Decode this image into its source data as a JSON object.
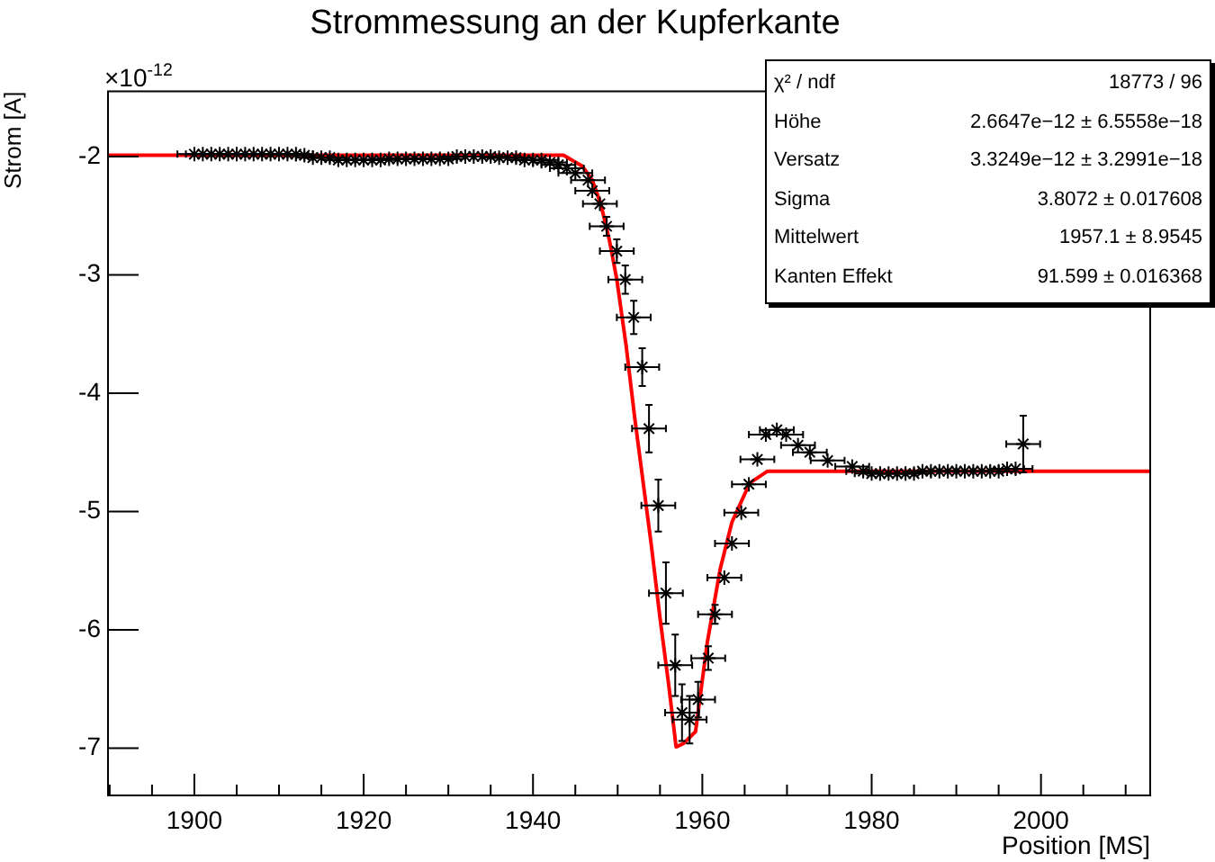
{
  "chart_data": {
    "type": "scatter",
    "title": "Strommessung an der Kupferkante",
    "xlabel": "Position [MS]",
    "ylabel": "Strom [A]",
    "annotations": [
      "×10$^{-12}$",
      "χ² / ndf",
      "18773 / 96",
      "Höhe",
      "2.6647e−12 ± 6.5558e−18",
      "Versatz",
      "3.3249e−12 ± 3.2991e−18",
      "Sigma",
      "3.8072 ± 0.017608",
      "Mittelwert",
      "1957.1 ± 8.9545",
      "Kanten Effekt",
      "91.599 ± 0.016368"
    ],
    "xlim": [
      1889.8,
      2012.9
    ],
    "xticks": [
      {
        "value": 1890,
        "label": null
      },
      {
        "value": 1895,
        "label": null
      },
      1900,
      {
        "value": 1905,
        "label": null
      },
      {
        "value": 1910,
        "label": null
      },
      {
        "value": 1915,
        "label": null
      },
      1920,
      {
        "value": 1925,
        "label": null
      },
      {
        "value": 1930,
        "label": null
      },
      {
        "value": 1935,
        "label": null
      },
      1940,
      {
        "value": 1945,
        "label": null
      },
      {
        "value": 1950,
        "label": null
      },
      {
        "value": 1955,
        "label": null
      },
      1960,
      {
        "value": 1965,
        "label": null
      },
      {
        "value": 1970,
        "label": null
      },
      {
        "value": 1975,
        "label": null
      },
      1980,
      {
        "value": 1985,
        "label": null
      },
      {
        "value": 1990,
        "label": null
      },
      {
        "value": 1995,
        "label": null
      },
      2000,
      {
        "value": 2005,
        "label": null
      },
      {
        "value": 2010,
        "label": null
      }
    ],
    "ylim": [
      -7.4,
      -1.45
    ],
    "yticks": [
      -7,
      -6,
      -5,
      -4,
      -3,
      -2
    ],
    "grid": false,
    "legend": false,
    "series": [
      {
        "color": "#000000",
        "marker": "cross",
        "x": [
          1900,
          1901,
          1902,
          1903,
          1904,
          1905,
          1906,
          1907,
          1908,
          1909,
          1910,
          1911,
          1912,
          1913,
          1914,
          1915,
          1916,
          1917,
          1918,
          1919,
          1920,
          1921,
          1922,
          1923,
          1924,
          1925,
          1926,
          1927,
          1928,
          1929,
          1930,
          1931,
          1932,
          1933,
          1934,
          1935,
          1936,
          1937,
          1938,
          1939,
          1940,
          1941,
          1942,
          1943,
          1944,
          1945,
          1946.5,
          1947.0,
          1947.9,
          1948.7,
          1949.9,
          1950.9,
          1951.9,
          1952.9,
          1953.7,
          1954.8,
          1955.7,
          1956.8,
          1957.6,
          1958.5,
          1959.5,
          1960.7,
          1961.5,
          1962.6,
          1963.5,
          1964.6,
          1965.5,
          1966.5,
          1967.5,
          1968.8,
          1969.9,
          1971.3,
          1972.7,
          1974.8,
          1977.7,
          1979,
          1980,
          1981,
          1982,
          1983,
          1984,
          1985,
          1986,
          1987,
          1988,
          1989,
          1990,
          1991,
          1992,
          1993,
          1994,
          1995,
          1996,
          1997,
          1997.9
        ],
        "values": [
          -1.98,
          -1.98,
          -1.98,
          -1.98,
          -1.98,
          -1.98,
          -1.98,
          -1.98,
          -1.98,
          -1.98,
          -1.98,
          -1.98,
          -1.98,
          -1.99,
          -2.01,
          -2.01,
          -2.01,
          -2.03,
          -2.03,
          -2.03,
          -2.03,
          -2.03,
          -2.03,
          -2.02,
          -2.02,
          -2.02,
          -2.02,
          -2.02,
          -2.02,
          -2.02,
          -2.02,
          -2.0,
          -2.0,
          -2.0,
          -2.0,
          -2.0,
          -2.01,
          -2.01,
          -2.01,
          -2.03,
          -2.03,
          -2.03,
          -2.05,
          -2.07,
          -2.1,
          -2.14,
          -2.2,
          -2.29,
          -2.4,
          -2.59,
          -2.8,
          -3.04,
          -3.36,
          -3.78,
          -4.3,
          -4.95,
          -5.69,
          -6.3,
          -6.7,
          -6.76,
          -6.59,
          -6.24,
          -5.87,
          -5.56,
          -5.27,
          -5.01,
          -4.77,
          -4.56,
          -4.35,
          -4.31,
          -4.35,
          -4.44,
          -4.5,
          -4.57,
          -4.62,
          -4.66,
          -4.68,
          -4.68,
          -4.68,
          -4.68,
          -4.68,
          -4.68,
          -4.66,
          -4.66,
          -4.66,
          -4.66,
          -4.66,
          -4.66,
          -4.66,
          -4.66,
          -4.66,
          -4.66,
          -4.64,
          -4.64,
          -4.43
        ],
        "errors": [
          null,
          null,
          null,
          null,
          null,
          null,
          null,
          null,
          null,
          null,
          null,
          null,
          null,
          null,
          null,
          null,
          null,
          null,
          null,
          null,
          null,
          null,
          null,
          null,
          null,
          null,
          null,
          null,
          null,
          null,
          null,
          null,
          null,
          null,
          null,
          null,
          null,
          null,
          null,
          null,
          null,
          null,
          null,
          null,
          null,
          null,
          null,
          null,
          null,
          0.08,
          0.1,
          0.12,
          0.14,
          0.16,
          0.2,
          0.22,
          0.26,
          0.26,
          0.24,
          0.2,
          0.15,
          0.1,
          0.08,
          null,
          null,
          null,
          null,
          null,
          null,
          null,
          null,
          null,
          null,
          null,
          null,
          null,
          null,
          null,
          null,
          null,
          null,
          null,
          null,
          null,
          null,
          null,
          null,
          null,
          null,
          null,
          null,
          null,
          null,
          null,
          0.24
        ],
        "xerrors": [
          2,
          2,
          2,
          2,
          2,
          2,
          2,
          2,
          2,
          2,
          2,
          2,
          2,
          2,
          2,
          2,
          2,
          2,
          2,
          2,
          2,
          2,
          2,
          2,
          2,
          2,
          2,
          2,
          2,
          2,
          2,
          2,
          2,
          2,
          2,
          2,
          2,
          2,
          2,
          2,
          2,
          2,
          2,
          2,
          2,
          2,
          2,
          2,
          2,
          2,
          2,
          2,
          2,
          2,
          2,
          2,
          2,
          2,
          2,
          2,
          2,
          2,
          2,
          2,
          2,
          2,
          2,
          2,
          2,
          2,
          2,
          2,
          2,
          2,
          2,
          2,
          2,
          2,
          2,
          2,
          2,
          2,
          2,
          2,
          2,
          2,
          2,
          2,
          2,
          2,
          2,
          2,
          2,
          2,
          2
        ]
      },
      {
        "type": "line",
        "color": "#ff0000",
        "x": [
          1889.8,
          1943.6,
          1945.8,
          1947,
          1948,
          1949,
          1949.9,
          1951,
          1952,
          1953,
          1954,
          1955,
          1956,
          1956.9,
          1957.8,
          1959.2,
          1960.6,
          1962.1,
          1963.5,
          1965.6,
          1967.7,
          1970,
          2012.9
        ],
        "values": [
          -1.99,
          -1.99,
          -2.08,
          -2.2,
          -2.4,
          -2.7,
          -3.04,
          -3.6,
          -4.2,
          -4.75,
          -5.3,
          -5.9,
          -6.45,
          -6.99,
          -6.96,
          -6.86,
          -6.1,
          -5.49,
          -5.09,
          -4.76,
          -4.66,
          -4.66,
          -4.66
        ]
      }
    ]
  }
}
